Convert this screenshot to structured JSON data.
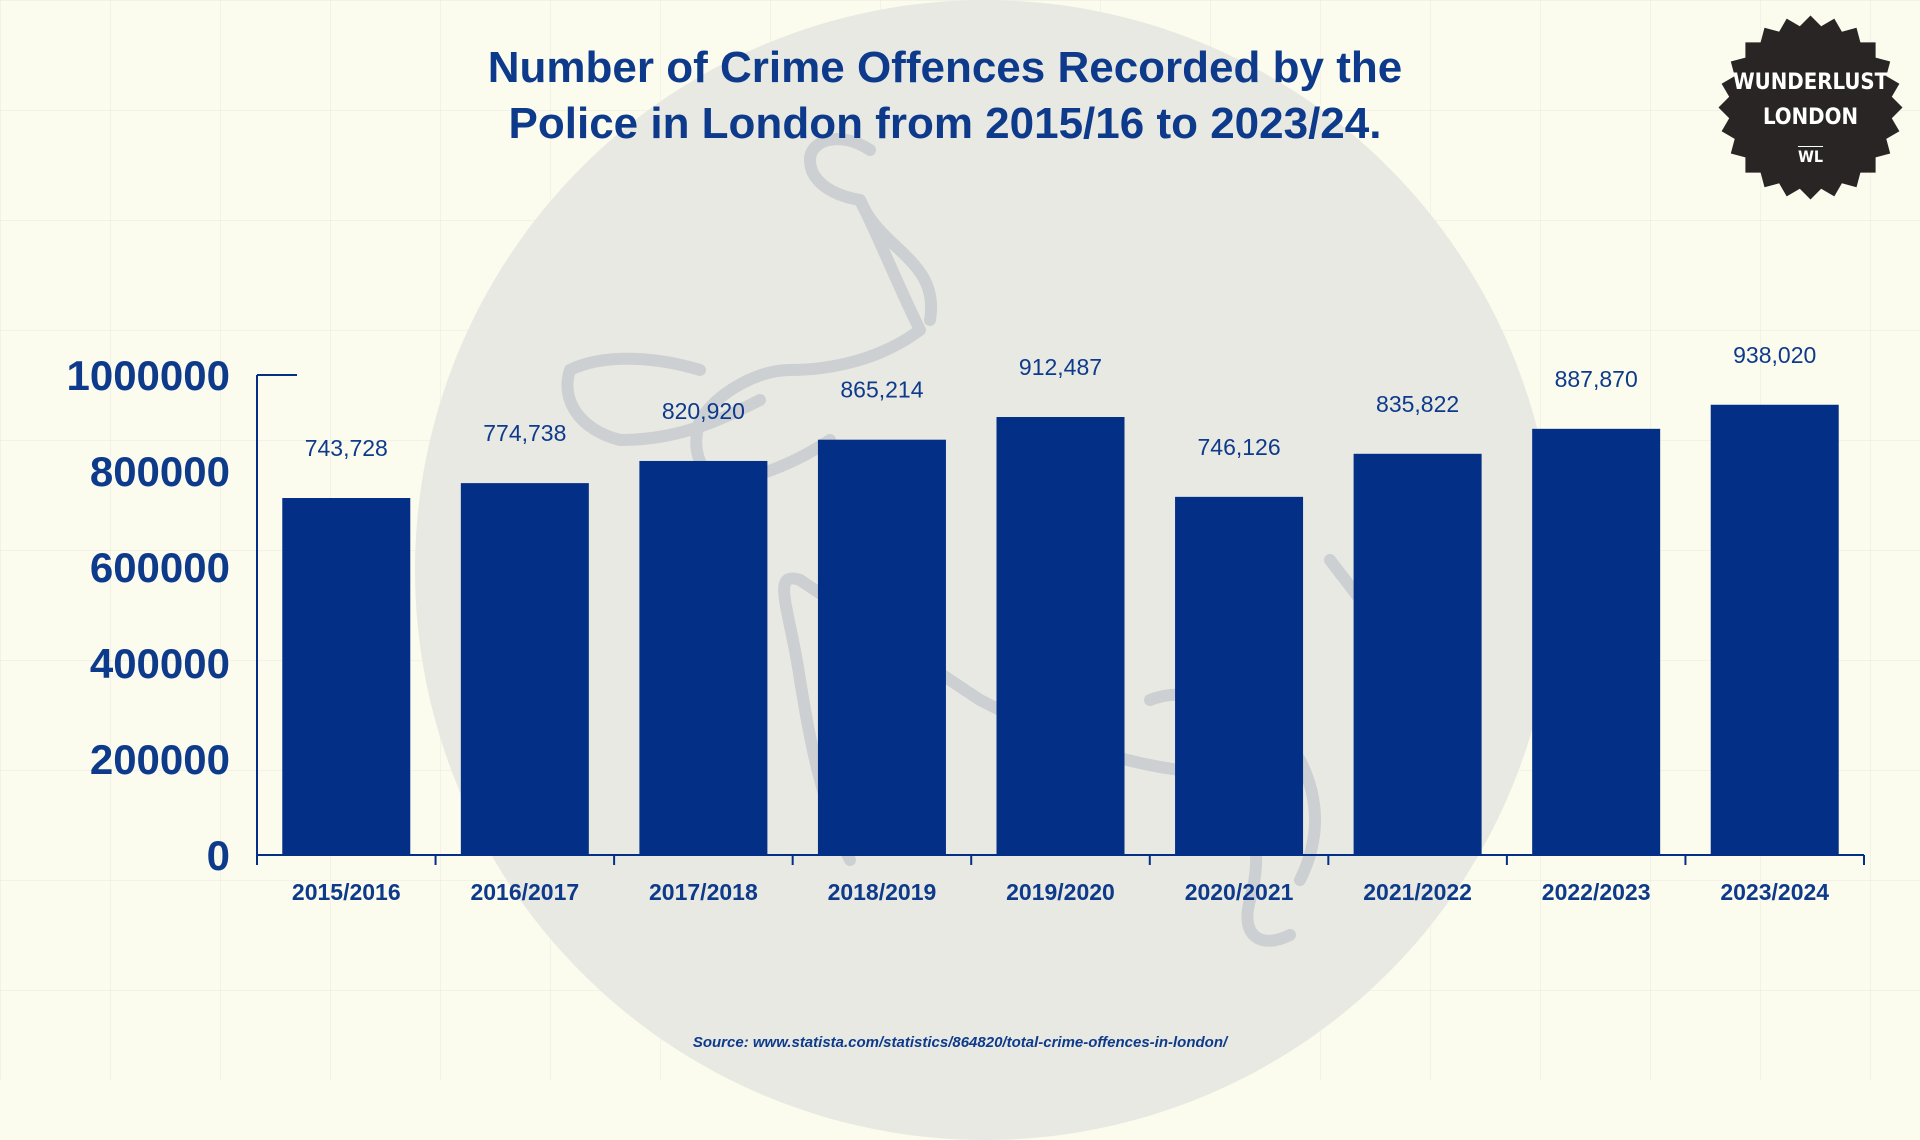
{
  "title_line1": "Number of Crime Offences Recorded by the",
  "title_line2": "Police in London from 2015/16 to 2023/24.",
  "logo": {
    "line1": "WUNDERLUST",
    "line2": "LONDON",
    "line3": "WL"
  },
  "source": "Source: www.statista.com/statistics/864820/total-crime-offences-in-london/",
  "colors": {
    "bar": "#032f87",
    "text": "#0e3a8c",
    "background": "#fbfbee"
  },
  "chart_data": {
    "type": "bar",
    "categories": [
      "2015/2016",
      "2016/2017",
      "2017/2018",
      "2018/2019",
      "2019/2020",
      "2020/2021",
      "2021/2022",
      "2022/2023",
      "2023/2024"
    ],
    "values": [
      743728,
      774738,
      820920,
      865214,
      912487,
      746126,
      835822,
      887870,
      938020
    ],
    "value_labels": [
      "743,728",
      "774,738",
      "820,920",
      "865,214",
      "912,487",
      "746,126",
      "835,822",
      "887,870",
      "938,020"
    ],
    "yticks": [
      "0",
      "200000",
      "400000",
      "600000",
      "800000",
      "1000000"
    ],
    "ylim": [
      0,
      1000000
    ],
    "xlabel": "",
    "ylabel": "",
    "grid": false,
    "legend": "none"
  }
}
